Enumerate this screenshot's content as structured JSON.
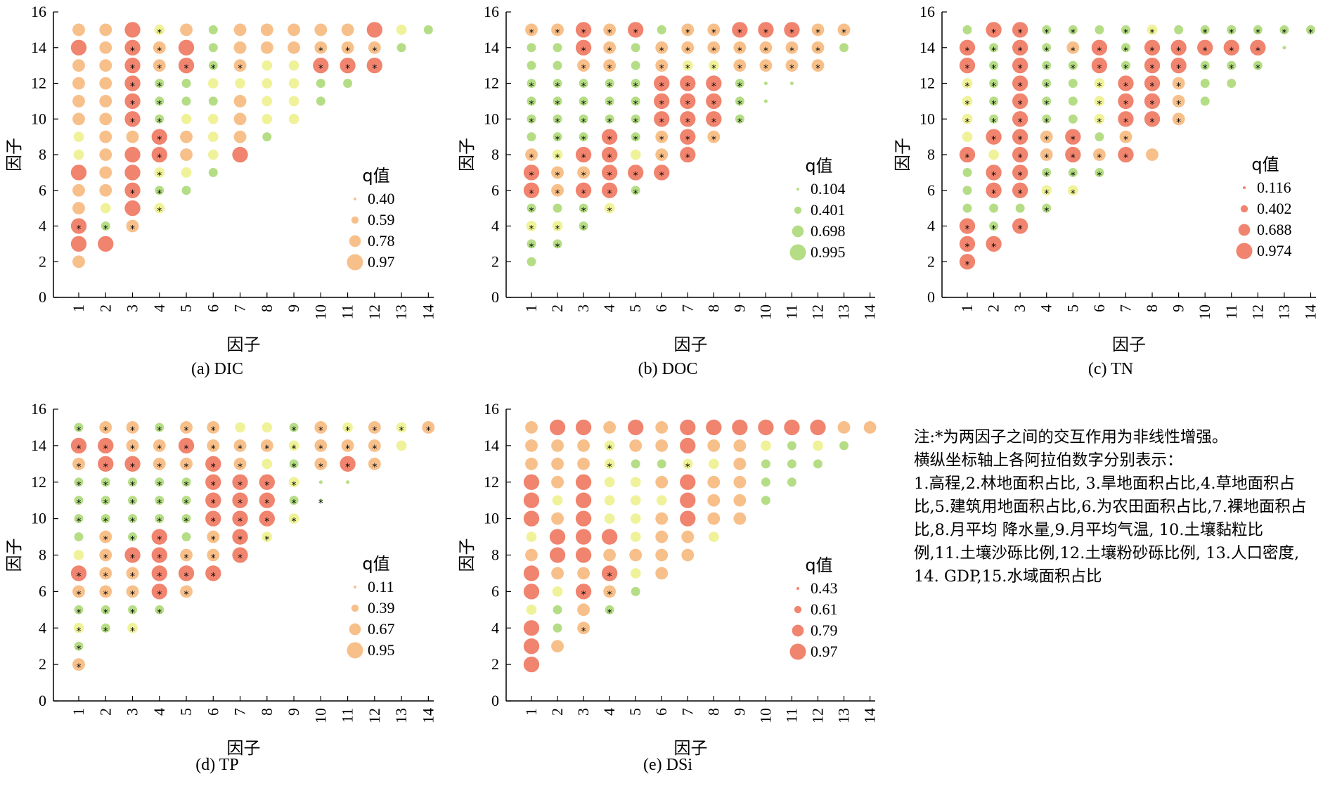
{
  "note": {
    "line1": "注:*为两因子之间的交互作用为非线性增强。",
    "line2": "横纵坐标轴上各阿拉伯数字分别表示：",
    "body": "1.高程,2.林地面积占比, 3.旱地面积占比,4.草地面积占比,5.建筑用地面积占比,6.为农田面积占比,7.裸地面积占比,8.月平均 降水量,9.月平均气温, 10.土壤黏粒比例,11.土壤沙砾比例,12.土壤粉砂砾比例, 13.人口密度, 14. GDP,15.水域面积占比"
  },
  "colors": {
    "red": "#f0846e",
    "orange": "#f7c08a",
    "yellow": "#f0f29a",
    "green": "#b5dd86"
  },
  "chart_data": [
    {
      "id": "DIC",
      "type": "scatter",
      "caption": "(a) DIC",
      "xlabel": "因子",
      "ylabel": "因子",
      "xlim": [
        0,
        14
      ],
      "ylim": [
        0,
        16
      ],
      "x_ticks": [
        "1",
        "2",
        "3",
        "4",
        "5",
        "6",
        "7",
        "8",
        "9",
        "10",
        "11",
        "12",
        "13",
        "14"
      ],
      "y_ticks": [
        "0",
        "2",
        "4",
        "6",
        "8",
        "10",
        "12",
        "14",
        "16"
      ],
      "legend_title": "q值",
      "legend_color": "orange",
      "legend": [
        {
          "label": "0.40",
          "value": 0.4
        },
        {
          "label": "0.59",
          "value": 0.59
        },
        {
          "label": "0.78",
          "value": 0.78
        },
        {
          "label": "0.97",
          "value": 0.97
        }
      ],
      "size_range": [
        0.4,
        0.97
      ],
      "rows": [
        {
          "y": 15,
          "cells": "O O R Y* O G O O O O O R Y G"
        },
        {
          "y": 14,
          "cells": "R O R* O* R G O O O O* O* O* G"
        },
        {
          "y": 13,
          "cells": "O O R* O* R* G* O* Y Y R* R* R*"
        },
        {
          "y": 12,
          "cells": "O O R* G* G Y Y Y Y G G"
        },
        {
          "y": 11,
          "cells": "O O R* G* G G O Y Y G"
        },
        {
          "y": 10,
          "cells": "O O R* G* Y Y O Y Y"
        },
        {
          "y": 9,
          "cells": "Y O O R* O Y O G"
        },
        {
          "y": 8,
          "cells": "Y O R R* O Y R"
        },
        {
          "y": 7,
          "cells": "R O R Y* Y G"
        },
        {
          "y": 6,
          "cells": "O O R* G* G"
        },
        {
          "y": 5,
          "cells": "O Y R Y*"
        },
        {
          "y": 4,
          "cells": "R* G* O*"
        },
        {
          "y": 3,
          "cells": "R R"
        },
        {
          "y": 2,
          "cells": "O"
        }
      ]
    },
    {
      "id": "DOC",
      "type": "scatter",
      "caption": "(b) DOC",
      "xlabel": "因子",
      "ylabel": "因子",
      "xlim": [
        0,
        14
      ],
      "ylim": [
        0,
        16
      ],
      "x_ticks": [
        "1",
        "2",
        "3",
        "4",
        "5",
        "6",
        "7",
        "8",
        "9",
        "10",
        "11",
        "12",
        "13",
        "14"
      ],
      "y_ticks": [
        "0",
        "2",
        "4",
        "6",
        "8",
        "10",
        "12",
        "14",
        "16"
      ],
      "legend_title": "q值",
      "legend_color": "green",
      "legend": [
        {
          "label": "0.104",
          "value": 0.104
        },
        {
          "label": "0.401",
          "value": 0.401
        },
        {
          "label": "0.698",
          "value": 0.698
        },
        {
          "label": "0.995",
          "value": 0.995
        }
      ],
      "size_range": [
        0.104,
        0.995
      ],
      "rows": [
        {
          "y": 15,
          "cells": "O* O* R* O* R* G O* O* R* R* R* O* O*"
        },
        {
          "y": 14,
          "cells": "G G R* O* G O* O* O* O* O* O* O* G"
        },
        {
          "y": 13,
          "cells": "G G O* O* G O* Y* Y* O* O* O* O*"
        },
        {
          "y": 12,
          "cells": "G* G* G* G* G* R* R* R* G* g g"
        },
        {
          "y": 11,
          "cells": "G* G* G* G* G* R* R* R* G* g"
        },
        {
          "y": 10,
          "cells": "G* G* G* G* G* R* R* R* G*"
        },
        {
          "y": 9,
          "cells": "G G* G* R* G* O* R* O*"
        },
        {
          "y": 8,
          "cells": "O* Y* R* R* Y O* R*"
        },
        {
          "y": 7,
          "cells": "R* O* O* R* R* R*"
        },
        {
          "y": 6,
          "cells": "R* O* R* R* G*"
        },
        {
          "y": 5,
          "cells": "G* G G* Y*"
        },
        {
          "y": 4,
          "cells": "Y* Y* G*"
        },
        {
          "y": 3,
          "cells": "G* G*"
        },
        {
          "y": 2,
          "cells": "G"
        }
      ]
    },
    {
      "id": "TN",
      "type": "scatter",
      "caption": "(c) TN",
      "xlabel": "因子",
      "ylabel": "因子",
      "xlim": [
        0,
        14
      ],
      "ylim": [
        0,
        16
      ],
      "x_ticks": [
        "1",
        "2",
        "3",
        "4",
        "5",
        "6",
        "7",
        "8",
        "9",
        "10",
        "11",
        "12",
        "13",
        "14"
      ],
      "y_ticks": [
        "0",
        "2",
        "4",
        "6",
        "8",
        "10",
        "12",
        "14",
        "16"
      ],
      "legend_title": "q值",
      "legend_color": "red",
      "legend": [
        {
          "label": "0.116",
          "value": 0.116
        },
        {
          "label": "0.402",
          "value": 0.402
        },
        {
          "label": "0.688",
          "value": 0.688
        },
        {
          "label": "0.974",
          "value": 0.974
        }
      ],
      "size_range": [
        0.116,
        0.974
      ],
      "rows": [
        {
          "y": 15,
          "cells": "G R* R* G* G* G G* Y* G G* G* G* G* G*"
        },
        {
          "y": 14,
          "cells": "R* G* R* G* O* R* G* R* R* R* R* R* g"
        },
        {
          "y": 13,
          "cells": "R* G* R* G* G* R* G* R* R* G* G* G*"
        },
        {
          "y": 12,
          "cells": "Y* G* R* G* G Y* R* R* O* G G"
        },
        {
          "y": 11,
          "cells": "Y* G* R* G* G Y* R* R* O* G"
        },
        {
          "y": 10,
          "cells": "Y* G* R* G* G Y* R* R* O*"
        },
        {
          "y": 9,
          "cells": "Y R* R* O* R* G O*"
        },
        {
          "y": 8,
          "cells": "R* Y R* O* R* O* R* O"
        },
        {
          "y": 7,
          "cells": "G R* R* G* G* G*"
        },
        {
          "y": 6,
          "cells": "G R* R* Y* Y*"
        },
        {
          "y": 5,
          "cells": "G G G G*"
        },
        {
          "y": 4,
          "cells": "R* G* R*"
        },
        {
          "y": 3,
          "cells": "R* R*"
        },
        {
          "y": 2,
          "cells": "R*"
        }
      ]
    },
    {
      "id": "TP",
      "type": "scatter",
      "caption": "(d) TP",
      "xlabel": "因子",
      "ylabel": "因子",
      "xlim": [
        0,
        14
      ],
      "ylim": [
        0,
        16
      ],
      "x_ticks": [
        "1",
        "2",
        "3",
        "4",
        "5",
        "6",
        "7",
        "8",
        "9",
        "10",
        "11",
        "12",
        "13",
        "14"
      ],
      "y_ticks": [
        "0",
        "2",
        "4",
        "6",
        "8",
        "10",
        "12",
        "14",
        "16"
      ],
      "legend_title": "q值",
      "legend_color": "orange",
      "legend": [
        {
          "label": "0.11",
          "value": 0.11
        },
        {
          "label": "0.39",
          "value": 0.39
        },
        {
          "label": "0.67",
          "value": 0.67
        },
        {
          "label": "0.95",
          "value": 0.95
        }
      ],
      "size_range": [
        0.11,
        0.95
      ],
      "rows": [
        {
          "y": 15,
          "cells": "G* O* O* G* O* O* Y Y G* O* Y* O* Y* O*"
        },
        {
          "y": 14,
          "cells": "R* R* O* O* R* O* O* O* Y* O* O* O* Y"
        },
        {
          "y": 13,
          "cells": "O* R* R* O* O* R* O* Y G* O* R* O*"
        },
        {
          "y": 12,
          "cells": "G* G* G* G* G* R* R* R* Y* g g"
        },
        {
          "y": 11,
          "cells": "G* G* G* G* G* R* R* R* G* g*"
        },
        {
          "y": 10,
          "cells": "G* G* G* G* G* R* R* R* Y*"
        },
        {
          "y": 9,
          "cells": "G O* G* R* G O* R* Y*"
        },
        {
          "y": 8,
          "cells": "Y O* R* R* O* O* R*"
        },
        {
          "y": 7,
          "cells": "R* O* O* R* R* R*"
        },
        {
          "y": 6,
          "cells": "O* O* O* R* O*"
        },
        {
          "y": 5,
          "cells": "G* G* G* G*"
        },
        {
          "y": 4,
          "cells": "Y* G* Y*"
        },
        {
          "y": 3,
          "cells": "G*"
        },
        {
          "y": 2,
          "cells": "O*"
        }
      ]
    },
    {
      "id": "DSi",
      "type": "scatter",
      "caption": "(e) DSi",
      "xlabel": "因子",
      "ylabel": "因子",
      "xlim": [
        0,
        14
      ],
      "ylim": [
        0,
        16
      ],
      "x_ticks": [
        "1",
        "2",
        "3",
        "4",
        "5",
        "6",
        "7",
        "8",
        "9",
        "10",
        "11",
        "12",
        "13",
        "14"
      ],
      "y_ticks": [
        "0",
        "2",
        "4",
        "6",
        "8",
        "10",
        "12",
        "14",
        "16"
      ],
      "legend_title": "q值",
      "legend_color": "red",
      "legend": [
        {
          "label": "0.43",
          "value": 0.43
        },
        {
          "label": "0.61",
          "value": 0.61
        },
        {
          "label": "0.79",
          "value": 0.79
        },
        {
          "label": "0.97",
          "value": 0.97
        }
      ],
      "size_range": [
        0.43,
        0.97
      ],
      "rows": [
        {
          "y": 15,
          "cells": "O R R O R O R R R R R R O O"
        },
        {
          "y": 14,
          "cells": "O O O Y* O O R O O Y G Y G"
        },
        {
          "y": 13,
          "cells": "O O O Y* G G Y* Y O G G G"
        },
        {
          "y": 12,
          "cells": "R O R Y Y O R O O G G"
        },
        {
          "y": 11,
          "cells": "R Y R Y Y Y R O O G"
        },
        {
          "y": 10,
          "cells": "R O R Y Y O R O O"
        },
        {
          "y": 9,
          "cells": "Y R R R Y O O Y"
        },
        {
          "y": 8,
          "cells": "O R R O O O O"
        },
        {
          "y": 7,
          "cells": "R O O R* Y O"
        },
        {
          "y": 6,
          "cells": "R Y R* O* G"
        },
        {
          "y": 5,
          "cells": "Y G O G*"
        },
        {
          "y": 4,
          "cells": "R G O*"
        },
        {
          "y": 3,
          "cells": "R O"
        },
        {
          "y": 2,
          "cells": "R"
        }
      ]
    }
  ]
}
